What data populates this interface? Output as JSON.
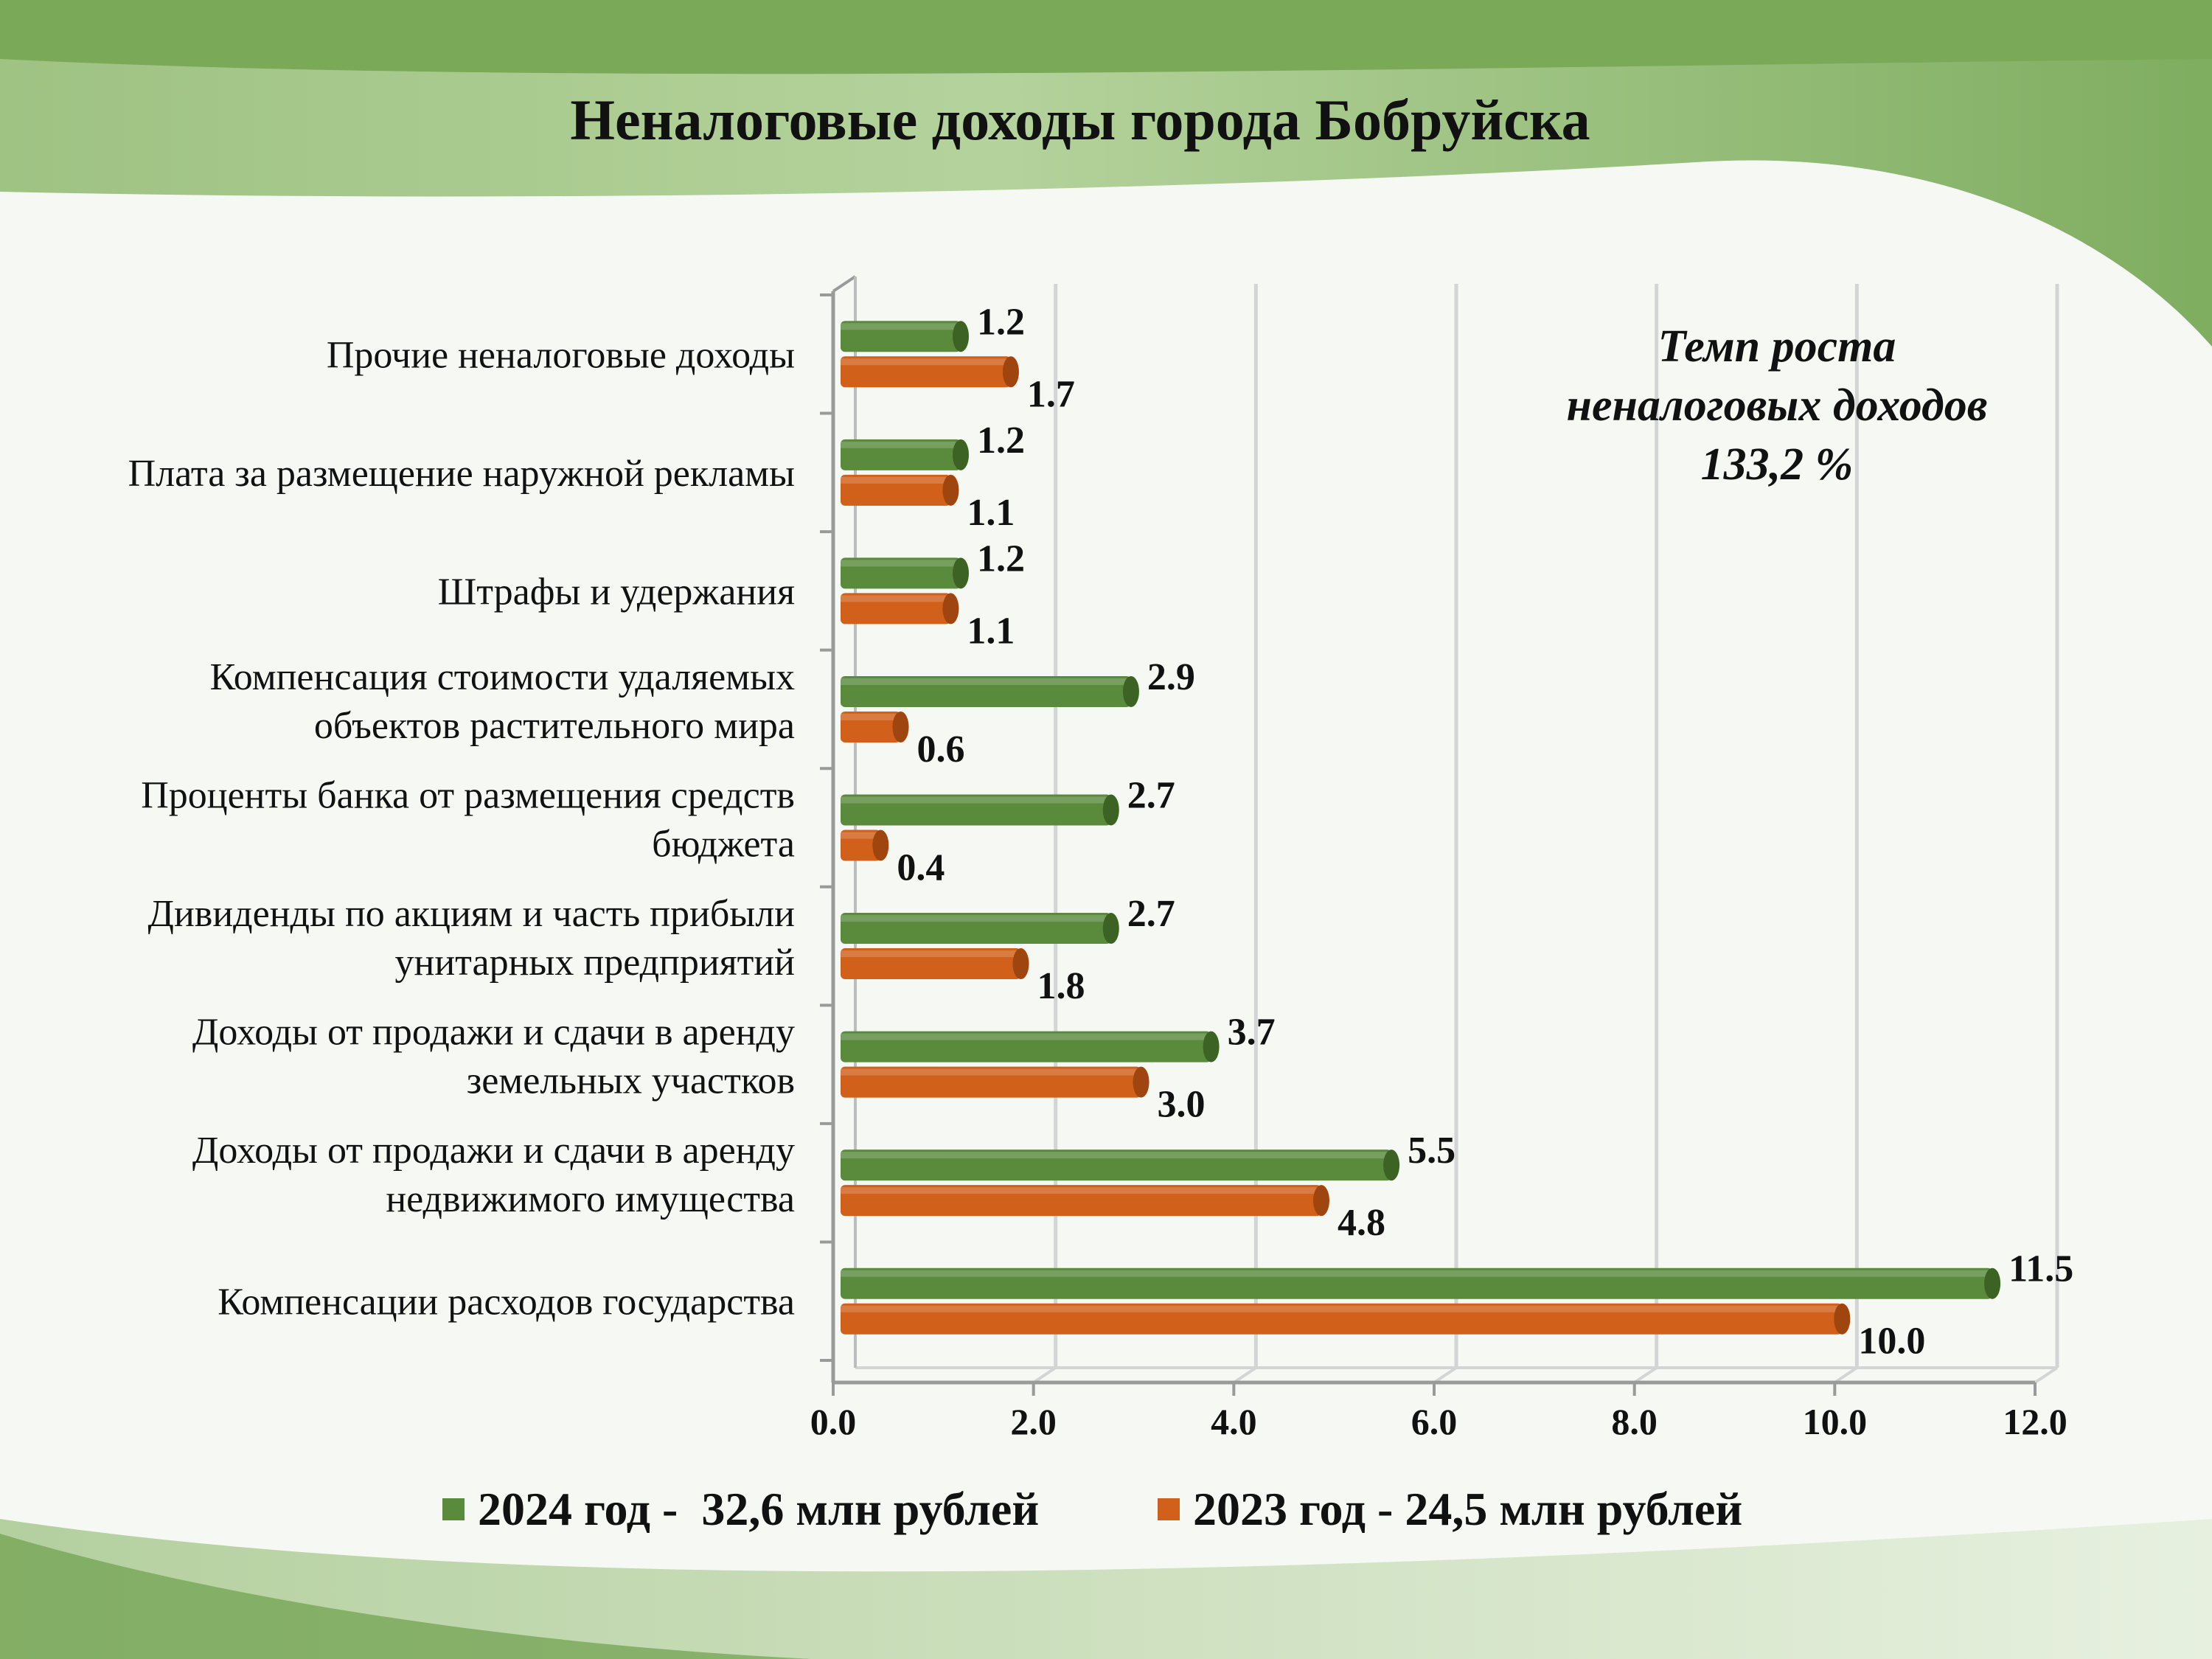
{
  "title": "Неналоговые доходы города Бобруйска",
  "note": {
    "line1": "Темп роста",
    "line2": "неналоговых доходов",
    "line3": "133,2 %"
  },
  "colors": {
    "series_2024": "#5a8a3c",
    "series_2023": "#d0601a"
  },
  "legend": [
    {
      "label": "2024 год -  32,6 млн рублей",
      "color": "#5a8a3c"
    },
    {
      "label": "2023 год - 24,5 млн рублей",
      "color": "#d0601a"
    }
  ],
  "chart_data": {
    "type": "bar",
    "orientation": "horizontal",
    "title": "Неналоговые доходы города Бобруйска",
    "categories": [
      [
        "Прочие неналоговые доходы"
      ],
      [
        "Плата за размещение наружной рекламы"
      ],
      [
        "Штрафы и удержания"
      ],
      [
        "Компенсация стоимости удаляемых",
        "объектов растительного мира"
      ],
      [
        "Проценты банка от размещения средств",
        "бюджета"
      ],
      [
        "Дивиденды по акциям и часть прибыли",
        "унитарных предприятий"
      ],
      [
        "Доходы от продажи и сдачи в аренду",
        "земельных участков"
      ],
      [
        "Доходы от продажи и  сдачи в аренду",
        "недвижимого  имущества"
      ],
      [
        "Компенсации расходов государства"
      ]
    ],
    "series": [
      {
        "name": "2024 год -  32,6 млн рублей",
        "values": [
          1.2,
          1.2,
          1.2,
          2.9,
          2.7,
          2.7,
          3.7,
          5.5,
          11.5
        ],
        "labels": [
          "1.2",
          "1.2",
          "1.2",
          "2.9",
          "2.7",
          "2.7",
          "3.7",
          "5.5",
          "11.5"
        ]
      },
      {
        "name": "2023 год - 24,5 млн рублей",
        "values": [
          1.7,
          1.1,
          1.1,
          0.6,
          0.4,
          1.8,
          3.0,
          4.8,
          10.0
        ],
        "labels": [
          "1.7",
          "1.1",
          "1.1",
          "0.6",
          "0.4",
          "1.8",
          "3.0",
          "4.8",
          "10.0"
        ]
      }
    ],
    "xlim": [
      0,
      12
    ],
    "xticks": [
      "0.0",
      "2.0",
      "4.0",
      "6.0",
      "8.0",
      "10.0",
      "12.0"
    ],
    "grid": true,
    "legend_position": "bottom"
  }
}
